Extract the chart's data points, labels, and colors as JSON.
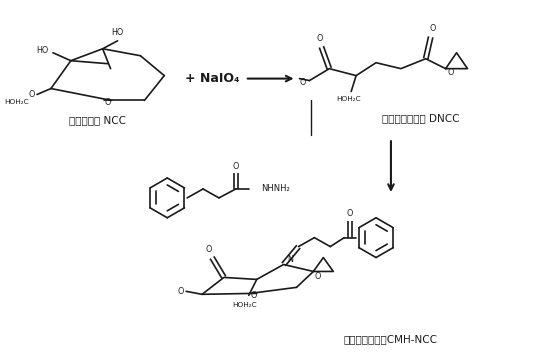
{
  "bg_color": "#ffffff",
  "lc": "#1a1a1a",
  "label_ncc": "纳米纤维素 NCC",
  "label_dncc": "双醇纳米纤维素 DNCC",
  "label_cmhncc": "接枝纳米纤维素CMH-NCC",
  "reagent": "+ NaIO₄",
  "lw": 1.2,
  "fs": 7.0,
  "fs_small": 5.8
}
